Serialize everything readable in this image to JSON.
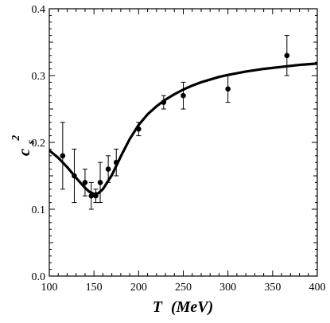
{
  "chart_data": {
    "type": "scatter",
    "xlabel_main": "T",
    "xlabel_unit": "(MeV)",
    "ylabel_main": "c",
    "ylabel_sub": "s",
    "ylabel_sup": "2",
    "xlim": [
      100,
      400
    ],
    "ylim": [
      0.0,
      0.4
    ],
    "x_ticks": [
      100,
      150,
      200,
      250,
      300,
      350,
      400
    ],
    "y_ticks": [
      0.0,
      0.1,
      0.2,
      0.3,
      0.4
    ],
    "y_tick_labels": [
      "0.0",
      "0.1",
      "0.2",
      "0.3",
      "0.4"
    ],
    "grid": false,
    "series": [
      {
        "kind": "points_with_errorbars",
        "points": [
          {
            "x": 115,
            "y": 0.18,
            "err": 0.05
          },
          {
            "x": 128,
            "y": 0.15,
            "err": 0.04
          },
          {
            "x": 140,
            "y": 0.14,
            "err": 0.02
          },
          {
            "x": 147,
            "y": 0.12,
            "err": 0.02
          },
          {
            "x": 152,
            "y": 0.12,
            "err": 0.01
          },
          {
            "x": 157,
            "y": 0.14,
            "err": 0.03
          },
          {
            "x": 166,
            "y": 0.16,
            "err": 0.02
          },
          {
            "x": 175,
            "y": 0.17,
            "err": 0.02
          },
          {
            "x": 200,
            "y": 0.22,
            "err": 0.01
          },
          {
            "x": 228,
            "y": 0.26,
            "err": 0.01
          },
          {
            "x": 250,
            "y": 0.27,
            "err": 0.02
          },
          {
            "x": 300,
            "y": 0.28,
            "err": 0.02
          },
          {
            "x": 366,
            "y": 0.33,
            "err": 0.03
          }
        ]
      },
      {
        "kind": "curve",
        "x": [
          100,
          110,
          120,
          130,
          140,
          145,
          150,
          155,
          160,
          170,
          180,
          190,
          200,
          210,
          220,
          230,
          240,
          250,
          260,
          270,
          280,
          290,
          300,
          320,
          340,
          360,
          380,
          400
        ],
        "y": [
          0.188,
          0.177,
          0.163,
          0.147,
          0.132,
          0.126,
          0.123,
          0.124,
          0.13,
          0.151,
          0.179,
          0.205,
          0.226,
          0.242,
          0.254,
          0.264,
          0.272,
          0.279,
          0.285,
          0.29,
          0.294,
          0.298,
          0.301,
          0.306,
          0.31,
          0.313,
          0.316,
          0.318
        ]
      }
    ]
  }
}
